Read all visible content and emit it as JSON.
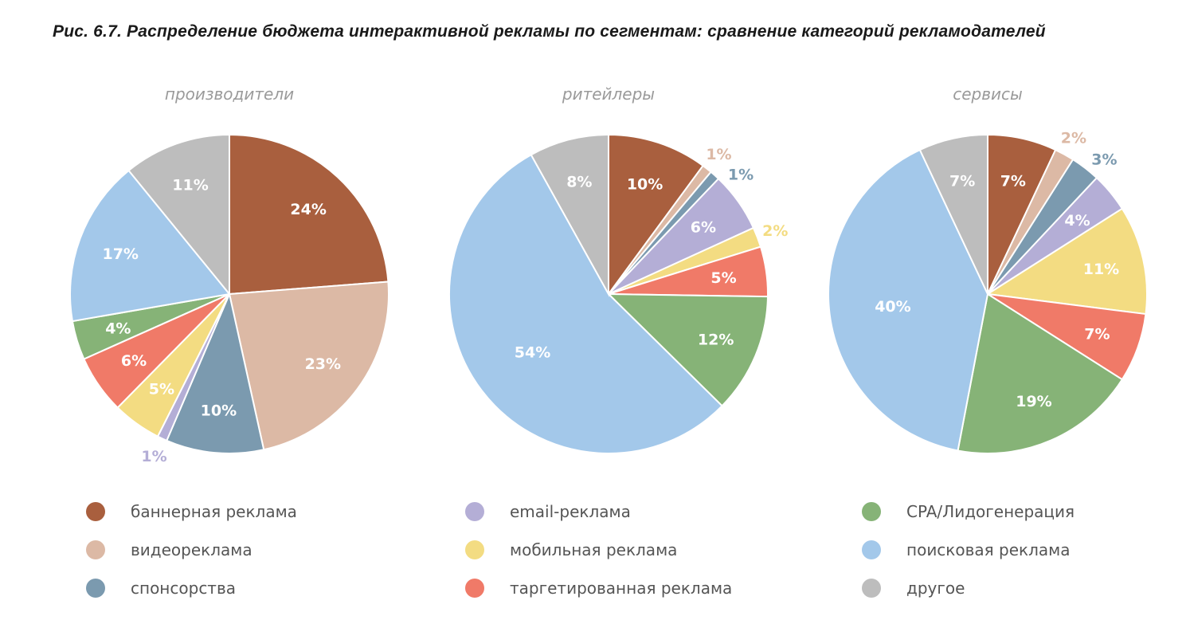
{
  "title": "Рис. 6.7.  Распределение бюджета интерактивной рекламы по сегментам: сравнение категорий рекламодателей",
  "chart_data": {
    "type": "pie",
    "categories": [
      "баннерная реклама",
      "видеореклама",
      "спонсорства",
      "email-реклама",
      "мобильная реклама",
      "таргетированная реклама",
      "CPA/Лидогенерация",
      "поисковая реклама",
      "другое"
    ],
    "colors": [
      "#a95f3e",
      "#dcb9a5",
      "#7b9aaf",
      "#b4aed6",
      "#f3dc82",
      "#f07a68",
      "#86b377",
      "#a3c8ea",
      "#bdbdbd"
    ],
    "series": [
      {
        "name": "производители",
        "values": [
          24,
          23,
          10,
          1,
          5,
          6,
          4,
          17,
          11
        ]
      },
      {
        "name": "ритейлеры",
        "values": [
          10,
          1,
          1,
          6,
          2,
          5,
          12,
          54,
          8
        ]
      },
      {
        "name": "сервисы",
        "values": [
          7,
          2,
          3,
          4,
          11,
          7,
          19,
          40,
          7
        ]
      }
    ],
    "unit": "%",
    "legend_position": "bottom"
  }
}
